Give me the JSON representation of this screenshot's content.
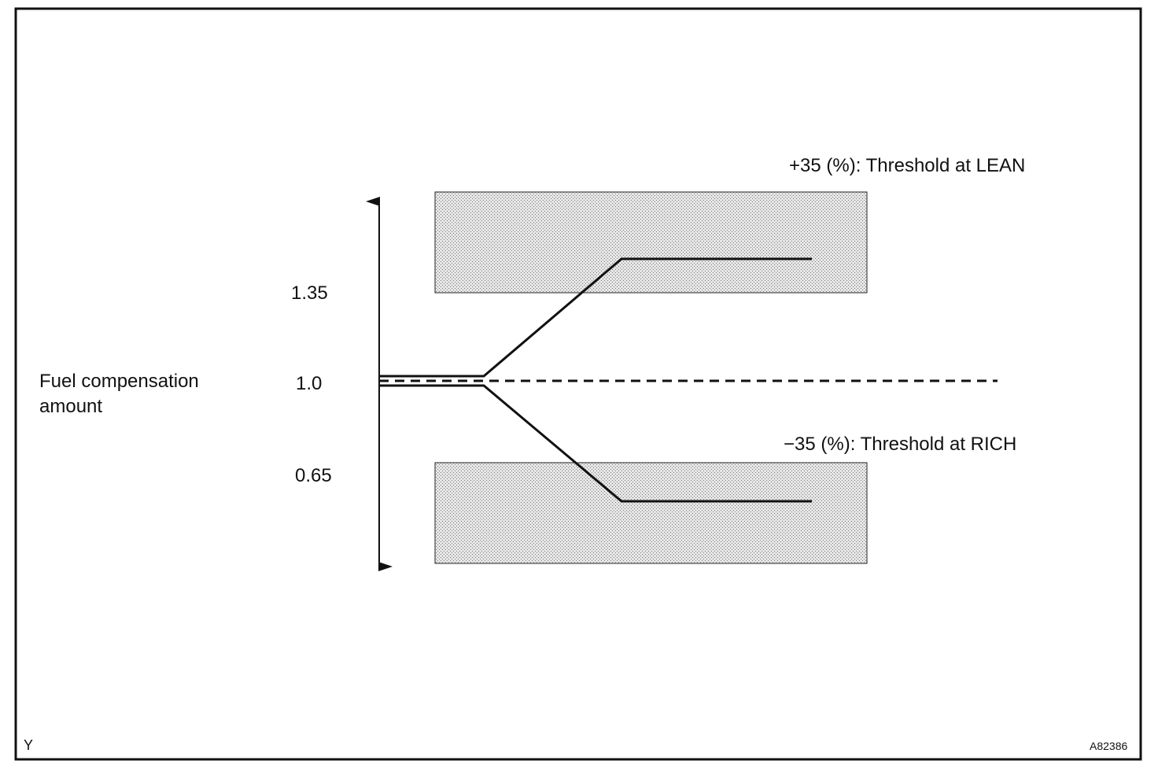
{
  "diagram": {
    "labels": {
      "lean_threshold": "+35 (%): Threshold at LEAN",
      "rich_threshold": "−35 (%): Threshold at RICH",
      "axis_title": [
        "Fuel compensation",
        "amount"
      ],
      "level_high": "1.35",
      "level_mid": "1.0",
      "level_low": "0.65"
    },
    "corner_left": "Y",
    "figure_id": "A82386"
  }
}
